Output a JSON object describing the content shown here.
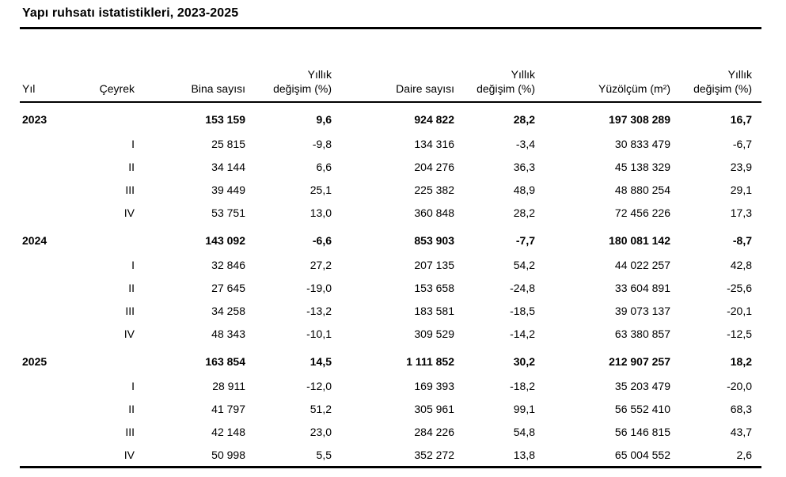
{
  "title": "Yapı ruhsatı istatistikleri, 2023-2025",
  "table": {
    "headers": [
      "Yıl",
      "Çeyrek",
      "Bina sayısı",
      "Yıllık\ndeğişim (%)",
      "Daire sayısı",
      "Yıllık\ndeğişim (%)",
      "Yüzölçüm (m²)",
      "Yıllık\ndeğişim (%)"
    ],
    "rows": [
      {
        "year": "2023",
        "quarter": "",
        "bold": true,
        "values": [
          "153 159",
          "9,6",
          "924 822",
          "28,2",
          "197 308 289",
          "16,7"
        ]
      },
      {
        "year": "",
        "quarter": "I",
        "bold": false,
        "values": [
          "25 815",
          "-9,8",
          "134 316",
          "-3,4",
          "30 833 479",
          "-6,7"
        ]
      },
      {
        "year": "",
        "quarter": "II",
        "bold": false,
        "values": [
          "34 144",
          "6,6",
          "204 276",
          "36,3",
          "45 138 329",
          "23,9"
        ]
      },
      {
        "year": "",
        "quarter": "III",
        "bold": false,
        "values": [
          "39 449",
          "25,1",
          "225 382",
          "48,9",
          "48 880 254",
          "29,1"
        ]
      },
      {
        "year": "",
        "quarter": "IV",
        "bold": false,
        "values": [
          "53 751",
          "13,0",
          "360 848",
          "28,2",
          "72 456 226",
          "17,3"
        ]
      },
      {
        "year": "2024",
        "quarter": "",
        "bold": true,
        "values": [
          "143 092",
          "-6,6",
          "853 903",
          "-7,7",
          "180 081 142",
          "-8,7"
        ]
      },
      {
        "year": "",
        "quarter": "I",
        "bold": false,
        "values": [
          "32 846",
          "27,2",
          "207 135",
          "54,2",
          "44 022 257",
          "42,8"
        ]
      },
      {
        "year": "",
        "quarter": "II",
        "bold": false,
        "values": [
          "27 645",
          "-19,0",
          "153 658",
          "-24,8",
          "33 604 891",
          "-25,6"
        ]
      },
      {
        "year": "",
        "quarter": "III",
        "bold": false,
        "values": [
          "34 258",
          "-13,2",
          "183 581",
          "-18,5",
          "39 073 137",
          "-20,1"
        ]
      },
      {
        "year": "",
        "quarter": "IV",
        "bold": false,
        "values": [
          "48 343",
          "-10,1",
          "309 529",
          "-14,2",
          "63 380 857",
          "-12,5"
        ]
      },
      {
        "year": "2025",
        "quarter": "",
        "bold": true,
        "values": [
          "163 854",
          "14,5",
          "1 111 852",
          "30,2",
          "212 907 257",
          "18,2"
        ]
      },
      {
        "year": "",
        "quarter": "I",
        "bold": false,
        "values": [
          "28 911",
          "-12,0",
          "169 393",
          "-18,2",
          "35 203 479",
          "-20,0"
        ]
      },
      {
        "year": "",
        "quarter": "II",
        "bold": false,
        "values": [
          "41 797",
          "51,2",
          "305 961",
          "99,1",
          "56 552 410",
          "68,3"
        ]
      },
      {
        "year": "",
        "quarter": "III",
        "bold": false,
        "values": [
          "42 148",
          "23,0",
          "284 226",
          "54,8",
          "56 146 815",
          "43,7"
        ]
      },
      {
        "year": "",
        "quarter": "IV",
        "bold": false,
        "values": [
          "50 998",
          "5,5",
          "352 272",
          "13,8",
          "65 004 552",
          "2,6"
        ]
      }
    ]
  },
  "chart_data": {
    "type": "table",
    "title": "Yapı ruhsatı istatistikleri, 2023-2025",
    "columns": [
      "Yıl",
      "Çeyrek",
      "Bina sayısı",
      "Yıllık değişim (%)",
      "Daire sayısı",
      "Yıllık değişim (%)",
      "Yüzölçüm (m²)",
      "Yıllık değişim (%)"
    ],
    "rows": [
      [
        "2023",
        "",
        153159,
        9.6,
        924822,
        28.2,
        197308289,
        16.7
      ],
      [
        "2023",
        "I",
        25815,
        -9.8,
        134316,
        -3.4,
        30833479,
        -6.7
      ],
      [
        "2023",
        "II",
        34144,
        6.6,
        204276,
        36.3,
        45138329,
        23.9
      ],
      [
        "2023",
        "III",
        39449,
        25.1,
        225382,
        48.9,
        48880254,
        29.1
      ],
      [
        "2023",
        "IV",
        53751,
        13.0,
        360848,
        28.2,
        72456226,
        17.3
      ],
      [
        "2024",
        "",
        143092,
        -6.6,
        853903,
        -7.7,
        180081142,
        -8.7
      ],
      [
        "2024",
        "I",
        32846,
        27.2,
        207135,
        54.2,
        44022257,
        42.8
      ],
      [
        "2024",
        "II",
        27645,
        -19.0,
        153658,
        -24.8,
        33604891,
        -25.6
      ],
      [
        "2024",
        "III",
        34258,
        -13.2,
        183581,
        -18.5,
        39073137,
        -20.1
      ],
      [
        "2024",
        "IV",
        48343,
        -10.1,
        309529,
        -14.2,
        63380857,
        -12.5
      ],
      [
        "2025",
        "",
        163854,
        14.5,
        1111852,
        30.2,
        212907257,
        18.2
      ],
      [
        "2025",
        "I",
        28911,
        -12.0,
        169393,
        -18.2,
        35203479,
        -20.0
      ],
      [
        "2025",
        "II",
        41797,
        51.2,
        305961,
        99.1,
        56552410,
        68.3
      ],
      [
        "2025",
        "III",
        42148,
        23.0,
        284226,
        54.8,
        56146815,
        43.7
      ],
      [
        "2025",
        "IV",
        50998,
        5.5,
        352272,
        13.8,
        65004552,
        2.6
      ]
    ],
    "layout": {
      "grid": false,
      "header_rule": "double-line",
      "bold_rows": "year totals",
      "number_format": "tr-TR (space thousands, comma decimal)"
    }
  },
  "colors": {
    "text": "#000000",
    "rule": "#000000",
    "background": "#ffffff"
  }
}
